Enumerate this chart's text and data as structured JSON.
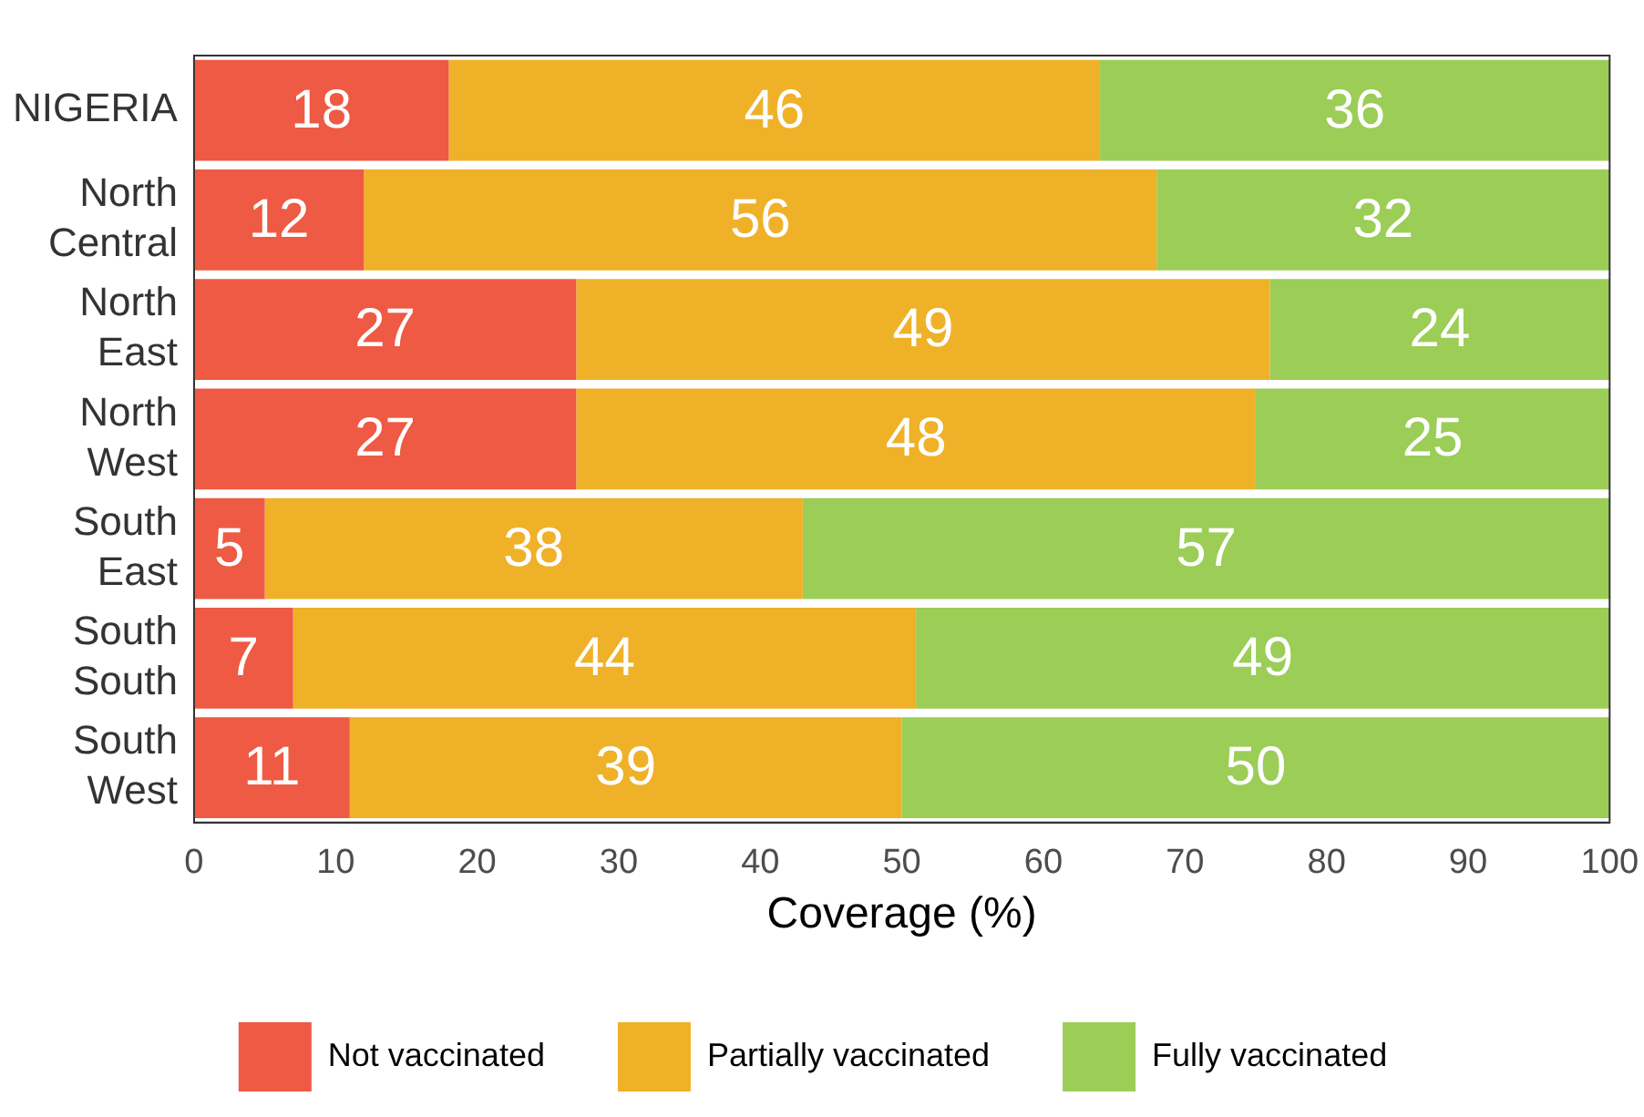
{
  "chart_data": {
    "type": "bar",
    "orientation": "horizontal",
    "stacked": true,
    "xlabel": "Coverage (%)",
    "categories": [
      "NIGERIA",
      "North\nCentral",
      "North\nEast",
      "North\nWest",
      "South\nEast",
      "South\nSouth",
      "South\nWest"
    ],
    "series": [
      {
        "name": "Not vaccinated",
        "color": "#ee5a43",
        "values": [
          18,
          12,
          27,
          27,
          5,
          7,
          11
        ]
      },
      {
        "name": "Partially vaccinated",
        "color": "#efb128",
        "values": [
          46,
          56,
          49,
          48,
          38,
          44,
          39
        ]
      },
      {
        "name": "Fully vaccinated",
        "color": "#9bcd57",
        "values": [
          36,
          32,
          24,
          25,
          57,
          49,
          50
        ]
      }
    ],
    "xlim": [
      0,
      100
    ],
    "xticks": [
      0,
      10,
      20,
      30,
      40,
      50,
      60,
      70,
      80,
      90,
      100
    ],
    "data_labels": true,
    "legend": "bottom",
    "grid": false
  }
}
